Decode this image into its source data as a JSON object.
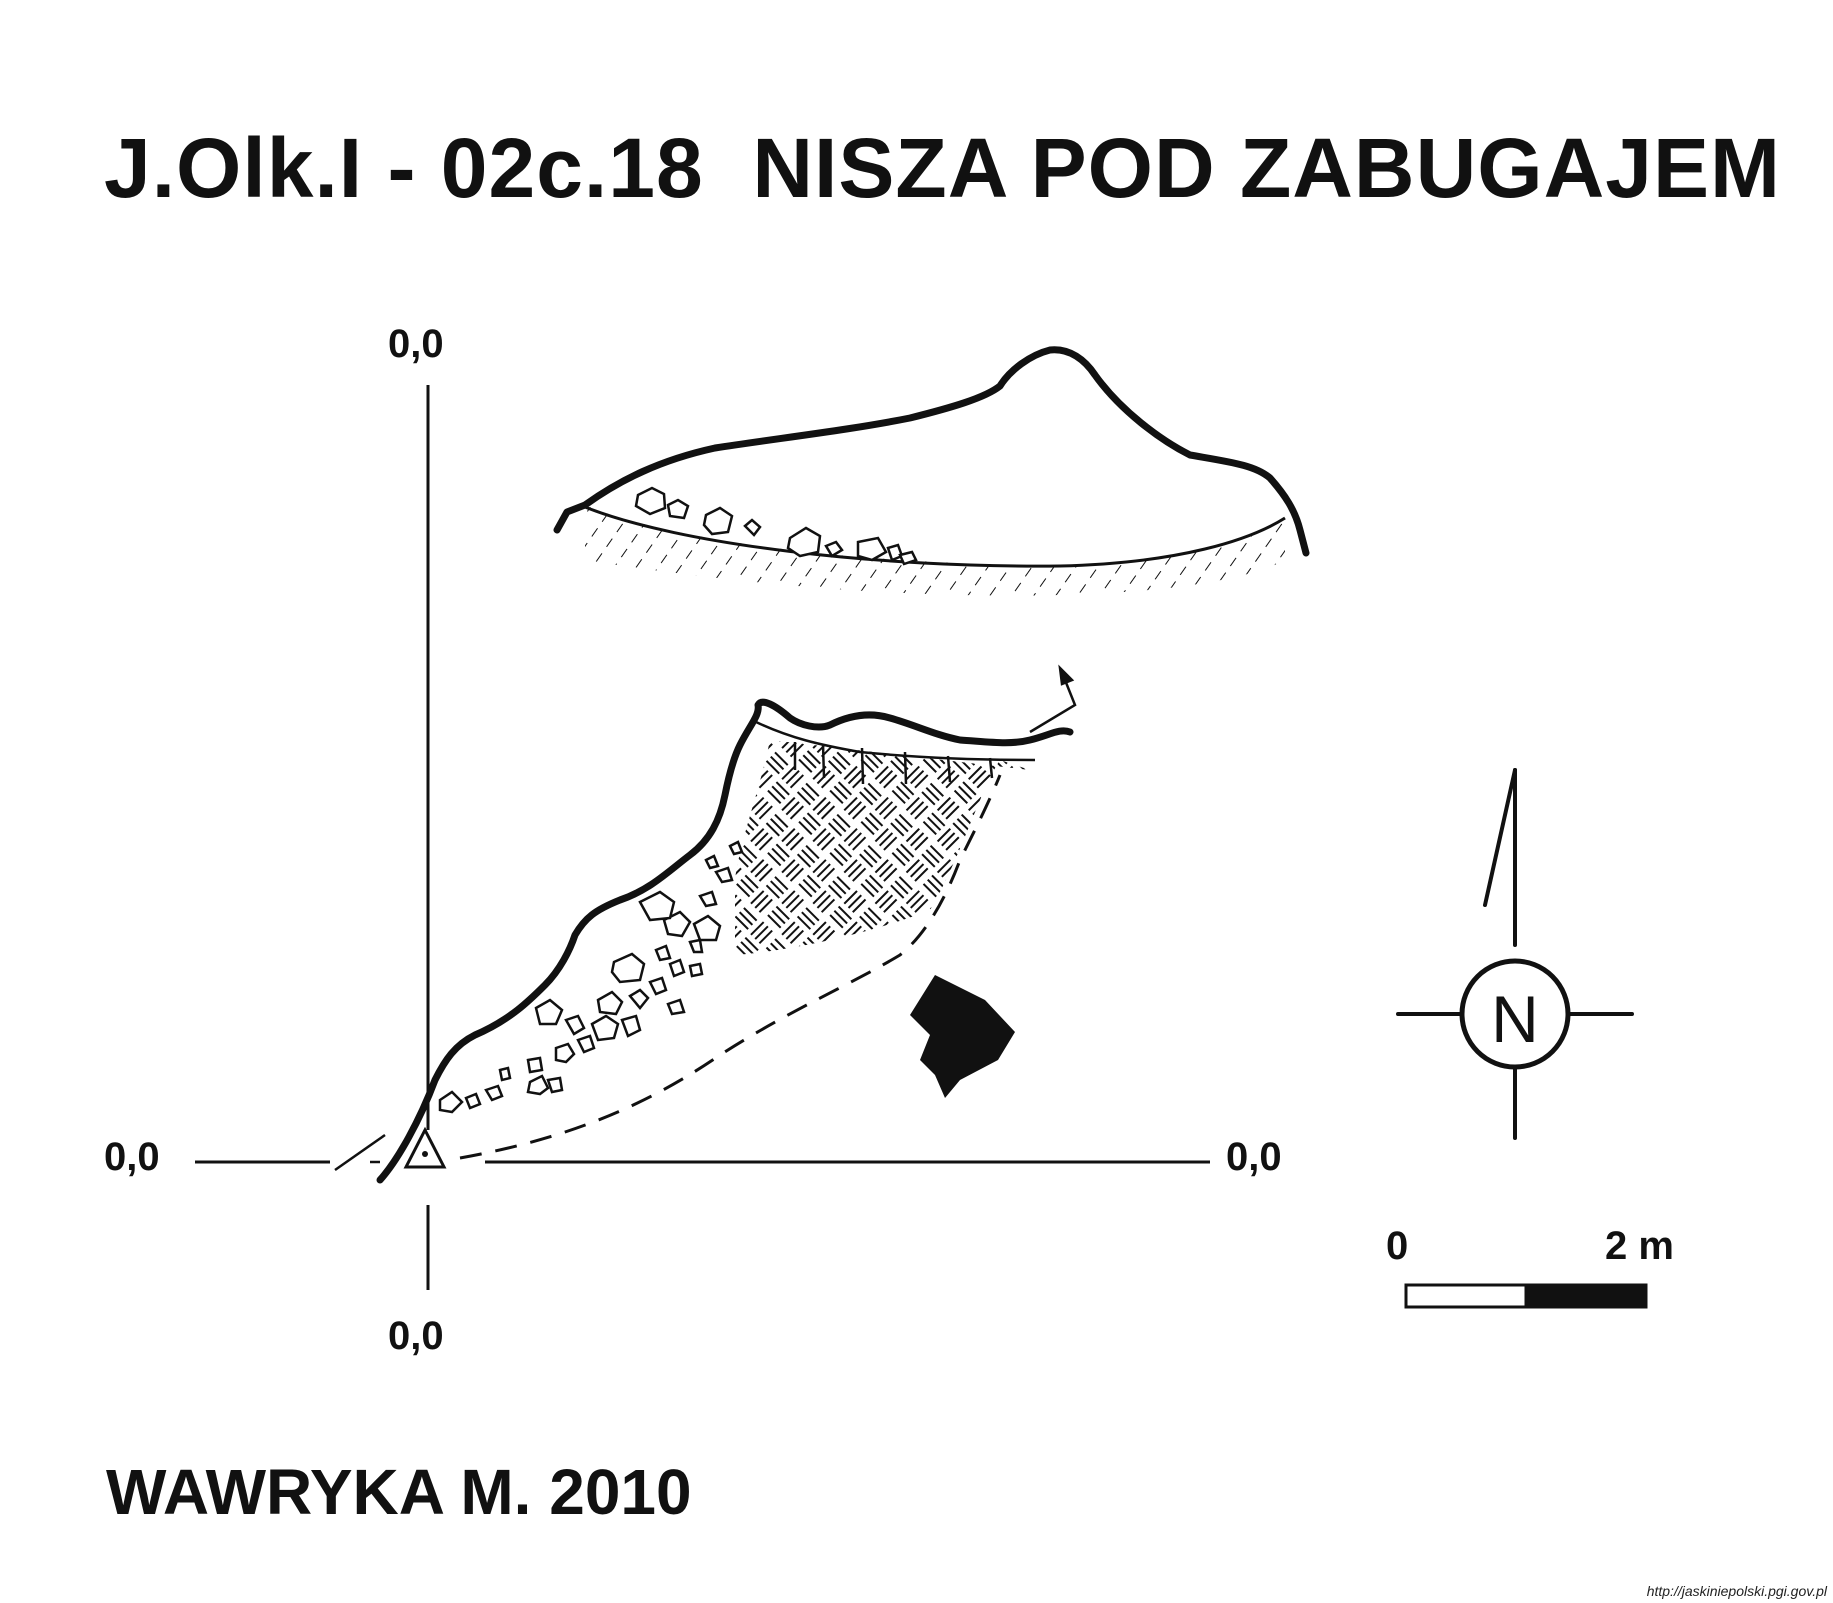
{
  "title": "J.Olk.I - 02c.18  NISZA POD ZABUGAJEM",
  "coordinates": {
    "top": "0,0",
    "left": "0,0",
    "right": "0,0",
    "bottom": "0,0"
  },
  "north_arrow": {
    "label": "N"
  },
  "scale_bar": {
    "start": "0",
    "end": "2 m"
  },
  "author": "WAWRYKA M. 2010",
  "source": "http://jaskiniepolski.pgi.gov.pl"
}
